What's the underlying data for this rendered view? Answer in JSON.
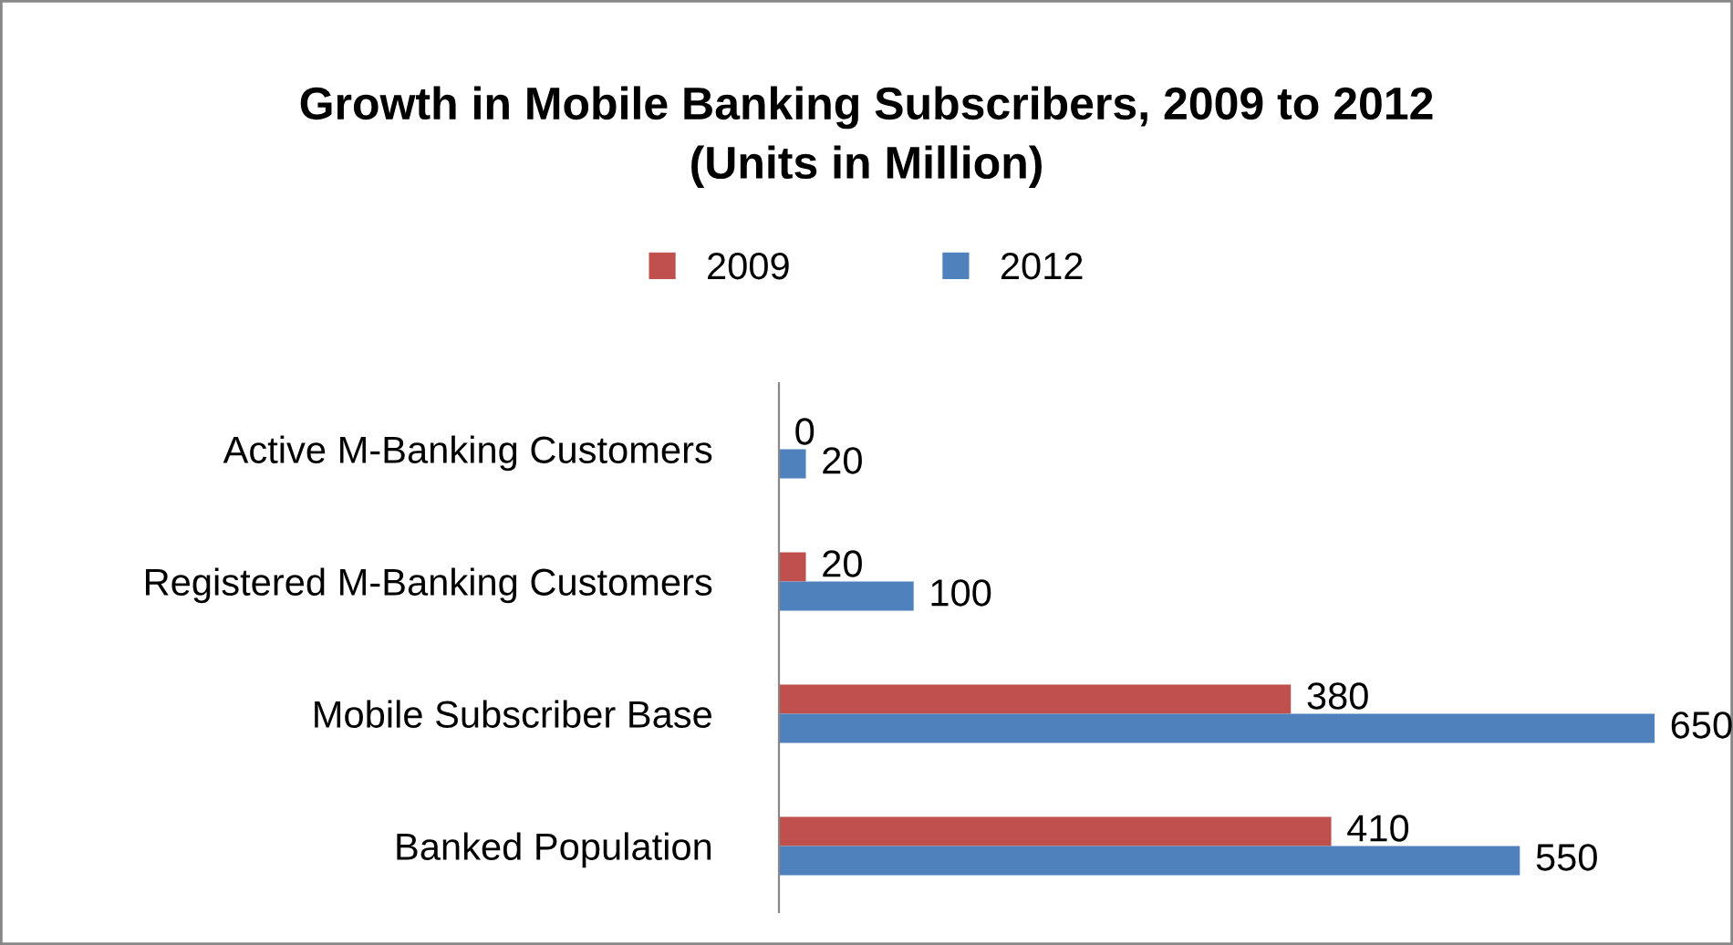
{
  "chart_data": {
    "type": "bar",
    "orientation": "horizontal",
    "title": "Growth in Mobile Banking Subscribers, 2009 to 2012\n(Units in Million)",
    "categories": [
      "Active M-Banking Customers",
      "Registered M-Banking Customers",
      "Mobile Subscriber Base",
      "Banked Population"
    ],
    "series": [
      {
        "name": "2009",
        "color": "#c0504d",
        "values": [
          0,
          20,
          380,
          410
        ]
      },
      {
        "name": "2012",
        "color": "#4f81bd",
        "values": [
          20,
          100,
          650,
          550
        ]
      }
    ],
    "data_labels": true,
    "legend": "top",
    "grid": false
  }
}
